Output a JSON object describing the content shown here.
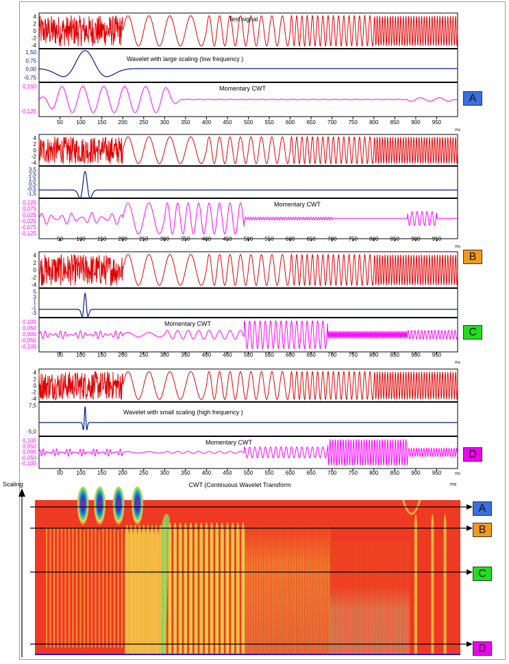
{
  "colors": {
    "signal": "#e00000",
    "wavelet": "#001a80",
    "cwt": "#ff00ff",
    "axis": "#000000",
    "badge_A": "#3a6fe0",
    "badge_B": "#f29a1c",
    "badge_C": "#22dd22",
    "badge_D": "#f000f0"
  },
  "labels": [
    "A",
    "B",
    "C",
    "D"
  ],
  "x_ticks": [
    "50",
    "100",
    "150",
    "200",
    "250",
    "300",
    "350",
    "400",
    "450",
    "500",
    "550",
    "600",
    "650",
    "700",
    "750",
    "800",
    "850",
    "900",
    "950"
  ],
  "x_unit": "ms",
  "test_signal_title": "Test signal",
  "panels": [
    {
      "id": "A",
      "signal_ticks": [
        "4",
        "2",
        "0",
        "-2",
        "-4"
      ],
      "wavelet_label": "Wavelet with large scaling  (low frequency )",
      "wavelet_ticks": [
        "1,50",
        "0,75",
        "0,00",
        "-0,75"
      ],
      "cwt_label": "Momentary CWT",
      "cwt_ticks": [
        "0,150",
        "-0,125"
      ]
    },
    {
      "id": "B",
      "signal_ticks": [
        "4",
        "2",
        "0",
        "-2",
        "-4"
      ],
      "wavelet_label": "",
      "wavelet_ticks": [
        "3,5",
        "2,5",
        "1,5",
        "0,5",
        "-0,5",
        "-1,5"
      ],
      "cwt_label": "Momentary CWT",
      "cwt_ticks": [
        "0,125",
        "0,075",
        "0,025",
        "-0,025",
        "-0,075",
        "-0,125"
      ]
    },
    {
      "id": "C",
      "signal_ticks": [
        "4",
        "2",
        "0",
        "-2",
        "-4"
      ],
      "wavelet_label": "",
      "wavelet_ticks": [
        "5",
        "3",
        "1",
        "-1",
        "-3"
      ],
      "cwt_label": "Momentary CWT",
      "cwt_ticks": [
        "0,100",
        "0,050",
        "0,000",
        "-0,050",
        "-0,100"
      ]
    },
    {
      "id": "D",
      "signal_ticks": [
        "4",
        "2",
        "0",
        "-2",
        "-4"
      ],
      "wavelet_label": "Wavelet with small scaling  (high frequency )",
      "wavelet_ticks": [
        "7,5",
        "-5,0"
      ],
      "cwt_label": "Momentary CWT",
      "cwt_ticks": [
        "0,100",
        "0,050",
        "0,000",
        "-0,050",
        "-0,100"
      ]
    }
  ],
  "scalogram": {
    "title": "CWT (Continuous Wavelet Transform",
    "y_axis_label": "Scaling",
    "x_unit": "ms"
  },
  "chart_data": {
    "type": "line",
    "title": "Test signal",
    "xlabel": "ms",
    "xlim": [
      0,
      1000
    ],
    "signal_segments": [
      {
        "t_start": 0,
        "t_end": 200,
        "description": "noise",
        "amplitude": 4
      },
      {
        "t_start": 200,
        "t_end": 400,
        "frequency_hz": 20,
        "amplitude": 4
      },
      {
        "t_start": 400,
        "t_end": 600,
        "frequency_hz": 40,
        "amplitude": 4
      },
      {
        "t_start": 600,
        "t_end": 800,
        "frequency_hz": 80,
        "amplitude": 4
      },
      {
        "t_start": 800,
        "t_end": 1000,
        "frequency_hz": 160,
        "amplitude": 4
      }
    ],
    "cwt_ranges": {
      "A": [
        -0.125,
        0.15
      ],
      "B": [
        -0.125,
        0.125
      ],
      "C": [
        -0.1,
        0.1
      ],
      "D": [
        -0.1,
        0.1
      ]
    }
  }
}
